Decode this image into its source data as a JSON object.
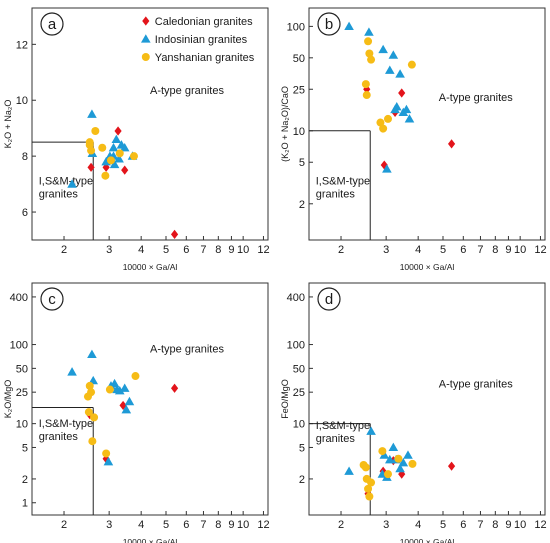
{
  "legend": {
    "items": [
      {
        "series": "caledonian",
        "label": "Caledonian granites"
      },
      {
        "series": "indosinian",
        "label": "Indosinian granites"
      },
      {
        "series": "yanshanian",
        "label": "Yanshanian granites"
      }
    ]
  },
  "series_styles": {
    "caledonian": {
      "color": "#e3141b",
      "marker": "diamond"
    },
    "indosinian": {
      "color": "#1e9ad6",
      "marker": "triangle"
    },
    "yanshanian": {
      "color": "#f6bc16",
      "marker": "circle"
    }
  },
  "chart_data": [
    {
      "type": "scatter",
      "panel_label": "a",
      "xlabel": "10000 × Ga/Al",
      "ylabel": "K₂O + Na₂O",
      "x_scale": "log",
      "xlim": [
        1.5,
        12.5
      ],
      "x_ticks": [
        2,
        3,
        4,
        5,
        6,
        7,
        8,
        9,
        10,
        12
      ],
      "y_scale": "linear",
      "ylim": [
        5,
        13.3
      ],
      "y_ticks": [
        6,
        8,
        10,
        12
      ],
      "boundary": {
        "x": 2.6,
        "y": 8.5
      },
      "region_labels": {
        "a_type": "A-type granites",
        "i_sm_type": [
          "I,S&M-type",
          "granites"
        ]
      },
      "series": [
        {
          "key": "caledonian",
          "name": "Caledonian granites",
          "points": [
            [
              2.55,
              7.6
            ],
            [
              2.92,
              7.6
            ],
            [
              3.25,
              8.9
            ],
            [
              3.45,
              7.5
            ],
            [
              5.4,
              5.2
            ]
          ]
        },
        {
          "key": "indosinian",
          "name": "Indosinian granites",
          "points": [
            [
              2.15,
              7.0
            ],
            [
              2.57,
              9.5
            ],
            [
              2.58,
              8.1
            ],
            [
              2.92,
              7.8
            ],
            [
              3.02,
              8.0
            ],
            [
              3.12,
              8.3
            ],
            [
              3.15,
              7.7
            ],
            [
              3.2,
              8.6
            ],
            [
              3.28,
              7.9
            ],
            [
              3.35,
              8.4
            ],
            [
              3.45,
              8.3
            ],
            [
              3.7,
              8.0
            ],
            [
              3.12,
              8.0
            ]
          ]
        },
        {
          "key": "yanshanian",
          "name": "Yanshanian granites",
          "points": [
            [
              2.52,
              8.5
            ],
            [
              2.52,
              8.4
            ],
            [
              2.55,
              8.2
            ],
            [
              2.65,
              8.9
            ],
            [
              2.82,
              8.3
            ],
            [
              2.9,
              7.3
            ],
            [
              3.05,
              7.85
            ],
            [
              3.3,
              8.1
            ],
            [
              3.75,
              8.0
            ]
          ]
        }
      ]
    },
    {
      "type": "scatter",
      "panel_label": "b",
      "xlabel": "10000 × Ga/Al",
      "ylabel": "(K₂O + Na₂O)/CaO",
      "x_scale": "log",
      "xlim": [
        1.5,
        12.5
      ],
      "x_ticks": [
        2,
        3,
        4,
        5,
        6,
        7,
        8,
        9,
        10,
        12
      ],
      "y_scale": "log",
      "ylim": [
        0.9,
        150
      ],
      "y_ticks": [
        2,
        5,
        10,
        25,
        50,
        100
      ],
      "boundary": {
        "x": 2.6,
        "y": 10
      },
      "region_labels": {
        "a_type": "A-type granites",
        "i_sm_type": [
          "I,S&M-type",
          "granites"
        ]
      },
      "series": [
        {
          "key": "caledonian",
          "name": "Caledonian granites",
          "points": [
            [
              2.52,
              25
            ],
            [
              2.95,
              4.7
            ],
            [
              3.25,
              15
            ],
            [
              3.45,
              23
            ],
            [
              5.4,
              7.5
            ]
          ]
        },
        {
          "key": "indosinian",
          "name": "Indosinian granites",
          "points": [
            [
              2.15,
              100
            ],
            [
              2.57,
              88
            ],
            [
              2.92,
              60
            ],
            [
              3.02,
              4.3
            ],
            [
              3.1,
              38
            ],
            [
              3.2,
              53
            ],
            [
              3.25,
              16
            ],
            [
              3.3,
              17
            ],
            [
              3.4,
              35
            ],
            [
              3.5,
              15
            ],
            [
              3.6,
              16
            ],
            [
              3.7,
              13
            ]
          ]
        },
        {
          "key": "yanshanian",
          "name": "Yanshanian granites",
          "points": [
            [
              2.5,
              28
            ],
            [
              2.52,
              22
            ],
            [
              2.55,
              72
            ],
            [
              2.58,
              55
            ],
            [
              2.62,
              48
            ],
            [
              2.85,
              12
            ],
            [
              2.92,
              10.5
            ],
            [
              3.05,
              13
            ],
            [
              3.78,
              43
            ]
          ]
        }
      ]
    },
    {
      "type": "scatter",
      "panel_label": "c",
      "xlabel": "10000 × Ga/Al",
      "ylabel": "K₂O/MgO",
      "x_scale": "log",
      "xlim": [
        1.5,
        12.5
      ],
      "x_ticks": [
        2,
        3,
        4,
        5,
        6,
        7,
        8,
        9,
        10,
        12
      ],
      "y_scale": "log",
      "ylim": [
        0.7,
        600
      ],
      "y_ticks": [
        1,
        2,
        5,
        10,
        25,
        50,
        100,
        400
      ],
      "boundary": {
        "x": 2.6,
        "y": 16
      },
      "region_labels": {
        "a_type": "A-type granites",
        "i_sm_type": [
          "I,S&M-type",
          "granites"
        ]
      },
      "series": [
        {
          "key": "caledonian",
          "name": "Caledonian granites",
          "points": [
            [
              2.52,
              13
            ],
            [
              2.92,
              3.6
            ],
            [
              3.4,
              17
            ],
            [
              5.4,
              28
            ]
          ]
        },
        {
          "key": "indosinian",
          "name": "Indosinian granites",
          "points": [
            [
              2.15,
              45
            ],
            [
              2.57,
              75
            ],
            [
              2.6,
              35
            ],
            [
              2.98,
              3.3
            ],
            [
              3.05,
              30
            ],
            [
              3.15,
              32
            ],
            [
              3.22,
              27
            ],
            [
              3.3,
              26
            ],
            [
              3.45,
              28
            ],
            [
              3.5,
              15
            ],
            [
              3.6,
              19
            ]
          ]
        },
        {
          "key": "yanshanian",
          "name": "Yanshanian granites",
          "points": [
            [
              2.48,
              22
            ],
            [
              2.5,
              14
            ],
            [
              2.52,
              30
            ],
            [
              2.55,
              25
            ],
            [
              2.58,
              6
            ],
            [
              2.62,
              12
            ],
            [
              2.92,
              4.2
            ],
            [
              3.02,
              27
            ],
            [
              3.8,
              40
            ]
          ]
        }
      ]
    },
    {
      "type": "scatter",
      "panel_label": "d",
      "xlabel": "10000 × Ga/Al",
      "ylabel": "FeO/MgO",
      "x_scale": "log",
      "xlim": [
        1.5,
        12.5
      ],
      "x_ticks": [
        2,
        3,
        4,
        5,
        6,
        7,
        8,
        9,
        10,
        12
      ],
      "y_scale": "log",
      "ylim": [
        0.7,
        600
      ],
      "y_ticks": [
        2,
        5,
        10,
        25,
        50,
        100,
        400
      ],
      "boundary": {
        "x": 2.6,
        "y": 10
      },
      "region_labels": {
        "a_type": "A-type granites",
        "i_sm_type": [
          "I,S&M-type",
          "granites"
        ]
      },
      "series": [
        {
          "key": "caledonian",
          "name": "Caledonian granites",
          "points": [
            [
              2.55,
              1.3
            ],
            [
              2.92,
              2.5
            ],
            [
              3.2,
              3.4
            ],
            [
              3.45,
              2.3
            ],
            [
              5.4,
              2.9
            ]
          ]
        },
        {
          "key": "indosinian",
          "name": "Indosinian granites",
          "points": [
            [
              2.15,
              2.5
            ],
            [
              2.62,
              8
            ],
            [
              2.9,
              2.3
            ],
            [
              2.95,
              4
            ],
            [
              3.02,
              2.1
            ],
            [
              3.1,
              3.5
            ],
            [
              3.2,
              5
            ],
            [
              3.28,
              3.5
            ],
            [
              3.4,
              2.7
            ],
            [
              3.5,
              3.2
            ],
            [
              3.65,
              4
            ]
          ]
        },
        {
          "key": "yanshanian",
          "name": "Yanshanian granites",
          "points": [
            [
              2.45,
              3
            ],
            [
              2.5,
              2.8
            ],
            [
              2.52,
              2
            ],
            [
              2.55,
              1.5
            ],
            [
              2.58,
              1.2
            ],
            [
              2.62,
              1.8
            ],
            [
              2.9,
              4.5
            ],
            [
              3.05,
              2.3
            ],
            [
              3.35,
              3.6
            ],
            [
              3.8,
              3.1
            ]
          ]
        }
      ]
    }
  ]
}
